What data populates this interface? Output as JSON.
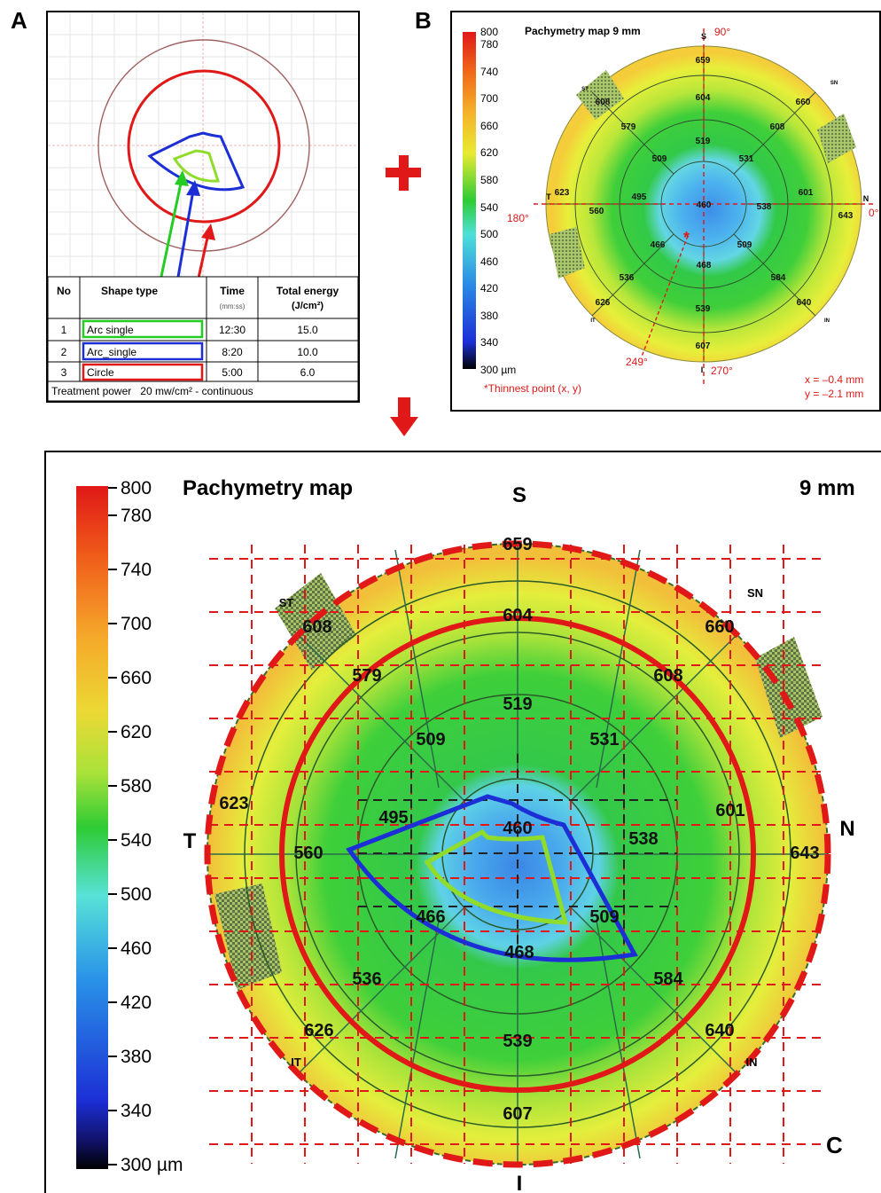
{
  "panels": {
    "a": "A",
    "b": "B",
    "c": "C"
  },
  "table": {
    "headers": [
      "No",
      "Shape type",
      "Time",
      "Total energy"
    ],
    "time_unit": "(mm:ss)",
    "energy_unit": "(J/cm²)",
    "rows": [
      {
        "no": "1",
        "shape": "Arc single",
        "time": "12:30",
        "energy": "15.0",
        "color": "#22cc22"
      },
      {
        "no": "2",
        "shape": "Arc_single",
        "time": "8:20",
        "energy": "10.0",
        "color": "#1c2fd6"
      },
      {
        "no": "3",
        "shape": "Circle",
        "time": "5:00",
        "energy": "6.0",
        "color": "#e01818"
      }
    ],
    "footer_prefix": "Treatment power",
    "footer_value": "20 mw/cm² - continuous"
  },
  "map_small": {
    "title": "Pachymetry map 9 mm",
    "angles": {
      "top": "90°",
      "left": "180°",
      "right": "0°",
      "bottom": "270°",
      "thinnest": "249°"
    },
    "footnote": "*Thinnest point (x, y)",
    "x_readout": "x = –0.4 mm",
    "y_readout": "y = –2.1 mm"
  },
  "map_large": {
    "title": "Pachymetry map",
    "diameter": "9 mm"
  },
  "orientation": {
    "S": "S",
    "I": "I",
    "T": "T",
    "N": "N",
    "ST": "ST",
    "SN": "SN",
    "IT": "IT",
    "IN": "IN"
  },
  "scale": {
    "labels": [
      "800",
      "780",
      "740",
      "700",
      "660",
      "620",
      "580",
      "540",
      "500",
      "460",
      "420",
      "380",
      "340",
      "300 µm"
    ]
  },
  "values": {
    "center": "460",
    "inner": [
      "519",
      "531",
      "538",
      "509",
      "468",
      "466",
      "495",
      "509"
    ],
    "middle": [
      "604",
      "608",
      "601",
      "584",
      "539",
      "536",
      "560",
      "579"
    ],
    "outer": [
      "659",
      "660",
      "643",
      "640",
      "607",
      "626",
      "623",
      "608"
    ]
  },
  "colors": {
    "accent_red": "#e01818",
    "arc_green": "#8fdc2a",
    "arc_blue": "#1c2fd6"
  }
}
